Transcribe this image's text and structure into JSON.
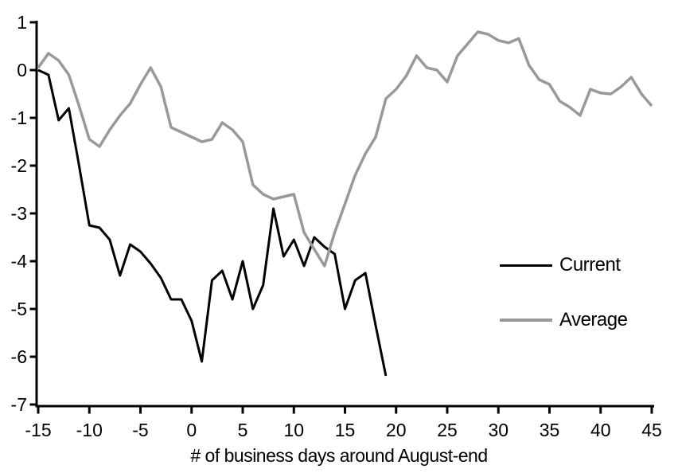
{
  "chart_data": {
    "type": "line",
    "title": "",
    "xlabel": "# of business days around August-end",
    "ylabel": "",
    "xlim": [
      -15,
      45
    ],
    "ylim": [
      -7,
      1
    ],
    "grid": false,
    "background_color": "#ffffff",
    "axis_color": "#000000",
    "legend_position": "center-right",
    "x_ticks": [
      -15,
      -10,
      -5,
      0,
      5,
      10,
      15,
      20,
      25,
      30,
      35,
      40,
      45
    ],
    "y_ticks": [
      1,
      0,
      -1,
      -2,
      -3,
      -4,
      -5,
      -6,
      -7
    ],
    "series": [
      {
        "name": "Current",
        "color": "#000000",
        "stroke_width": 3,
        "x": [
          -15,
          -14,
          -13,
          -12,
          -11,
          -10,
          -9,
          -8,
          -7,
          -6,
          -5,
          -4,
          -3,
          -2,
          -1,
          0,
          1,
          2,
          3,
          4,
          5,
          6,
          7,
          8,
          9,
          10,
          11,
          12,
          13,
          14,
          15,
          16,
          17,
          18,
          19
        ],
        "values": [
          0,
          -0.1,
          -1.05,
          -0.8,
          -2.0,
          -3.25,
          -3.3,
          -3.55,
          -4.3,
          -3.65,
          -3.8,
          -4.05,
          -4.35,
          -4.8,
          -4.8,
          -5.25,
          -6.1,
          -4.4,
          -4.2,
          -4.8,
          -4.0,
          -5.0,
          -4.5,
          -2.9,
          -3.9,
          -3.55,
          -4.1,
          -3.5,
          -3.7,
          -3.85,
          -5.0,
          -4.4,
          -4.25,
          -5.35,
          -6.4
        ]
      },
      {
        "name": "Average",
        "color": "#999999",
        "stroke_width": 3.5,
        "x": [
          -15,
          -14,
          -13,
          -12,
          -11,
          -10,
          -9,
          -8,
          -7,
          -6,
          -5,
          -4,
          -3,
          -2,
          -1,
          0,
          1,
          2,
          3,
          4,
          5,
          6,
          7,
          8,
          9,
          10,
          11,
          12,
          13,
          14,
          15,
          16,
          17,
          18,
          19,
          20,
          21,
          22,
          23,
          24,
          25,
          26,
          27,
          28,
          29,
          30,
          31,
          32,
          33,
          34,
          35,
          36,
          37,
          38,
          39,
          40,
          41,
          42,
          43,
          44,
          45
        ],
        "values": [
          0.05,
          0.35,
          0.2,
          -0.1,
          -0.75,
          -1.45,
          -1.6,
          -1.25,
          -0.95,
          -0.7,
          -0.3,
          0.05,
          -0.35,
          -1.2,
          -1.3,
          -1.4,
          -1.5,
          -1.45,
          -1.1,
          -1.25,
          -1.5,
          -2.4,
          -2.6,
          -2.7,
          -2.65,
          -2.6,
          -3.4,
          -3.75,
          -4.1,
          -3.4,
          -2.8,
          -2.2,
          -1.75,
          -1.4,
          -0.6,
          -0.4,
          -0.12,
          0.3,
          0.05,
          0.0,
          -0.25,
          0.3,
          0.55,
          0.8,
          0.75,
          0.62,
          0.57,
          0.66,
          0.1,
          -0.2,
          -0.3,
          -0.65,
          -0.78,
          -0.95,
          -0.4,
          -0.48,
          -0.5,
          -0.35,
          -0.15,
          -0.5,
          -0.75
        ]
      }
    ]
  }
}
